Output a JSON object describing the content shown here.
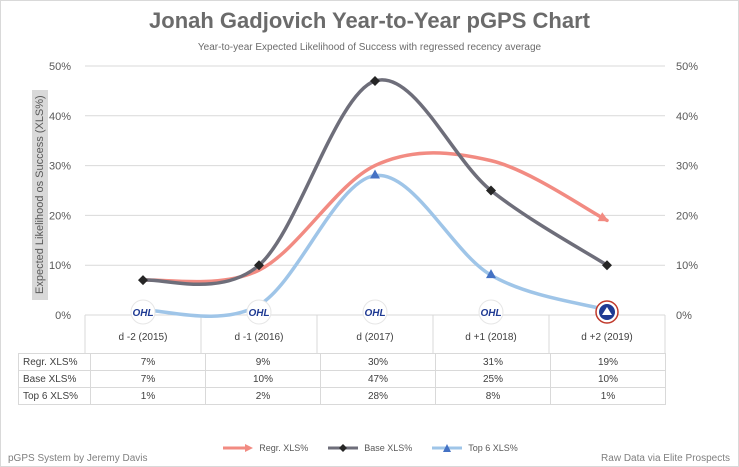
{
  "colors": {
    "regr": "#f28b82",
    "base": "#6e6e7a",
    "top6": "#9fc5e8",
    "top6_marker": "#4472c4",
    "grid": "#d9d9d9",
    "text": "#595959"
  },
  "chart_data": {
    "type": "line",
    "title": "Jonah Gadjovich Year-to-Year pGPS Chart",
    "subtitle": "Year-to-year Expected Likelihood of Success with regressed recency average",
    "ylabel": "Expected Likelihood os Success (XLS%)",
    "ylim": [
      0,
      50
    ],
    "yticks": [
      "0%",
      "10%",
      "20%",
      "30%",
      "40%",
      "50%"
    ],
    "categories": [
      "d -2 (2015)",
      "d -1 (2016)",
      "d (2017)",
      "d +1 (2018)",
      "d +2 (2019)"
    ],
    "league_logos": [
      "OHL",
      "OHL",
      "OHL",
      "OHL",
      "AHL"
    ],
    "series": [
      {
        "name": "Regr. XLS%",
        "label": "Regr. XLS%",
        "values": [
          7,
          9,
          30,
          31,
          19
        ],
        "cells": [
          "7%",
          "9%",
          "30%",
          "31%",
          "19%"
        ],
        "marker": "arrow"
      },
      {
        "name": "Base XLS%",
        "label": "Base XLS%",
        "values": [
          7,
          10,
          47,
          25,
          10
        ],
        "cells": [
          "7%",
          "10%",
          "47%",
          "25%",
          "10%"
        ],
        "marker": "diamond"
      },
      {
        "name": "Top 6 XLS%",
        "label": "Top 6 XLS%",
        "values": [
          1,
          2,
          28,
          8,
          1
        ],
        "cells": [
          "1%",
          "2%",
          "28%",
          "8%",
          "1%"
        ],
        "marker": "triangle"
      }
    ]
  },
  "footer": {
    "left": "pGPS System by Jeremy Davis",
    "right": "Raw Data via Elite Prospects"
  }
}
